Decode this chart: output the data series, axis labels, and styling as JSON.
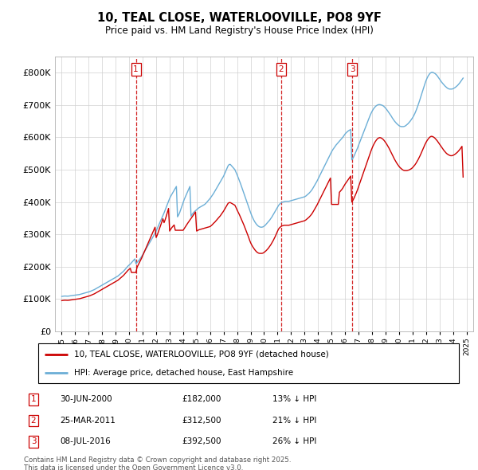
{
  "title": "10, TEAL CLOSE, WATERLOOVILLE, PO8 9YF",
  "subtitle": "Price paid vs. HM Land Registry's House Price Index (HPI)",
  "legend_line1": "10, TEAL CLOSE, WATERLOOVILLE, PO8 9YF (detached house)",
  "legend_line2": "HPI: Average price, detached house, East Hampshire",
  "footer_line1": "Contains HM Land Registry data © Crown copyright and database right 2025.",
  "footer_line2": "This data is licensed under the Open Government Licence v3.0.",
  "transactions": [
    {
      "num": 1,
      "date": "30-JUN-2000",
      "price": "£182,000",
      "pct": "13% ↓ HPI"
    },
    {
      "num": 2,
      "date": "25-MAR-2011",
      "price": "£312,500",
      "pct": "21% ↓ HPI"
    },
    {
      "num": 3,
      "date": "08-JUL-2016",
      "price": "£392,500",
      "pct": "26% ↓ HPI"
    }
  ],
  "vline_years": [
    2000.5,
    2011.25,
    2016.54
  ],
  "ylim": [
    0,
    850000
  ],
  "yticks": [
    0,
    100000,
    200000,
    300000,
    400000,
    500000,
    600000,
    700000,
    800000
  ],
  "xlim_start": 1994.5,
  "xlim_end": 2025.5,
  "hpi_color": "#6baed6",
  "price_color": "#cc0000",
  "vline_color": "#cc0000",
  "background_color": "#ffffff",
  "grid_color": "#d0d0d0",
  "hpi_data_years_start": 1995.0,
  "hpi_data_years_step": 0.0833,
  "hpi_values": [
    108000,
    108500,
    109000,
    109200,
    109000,
    108800,
    109000,
    109500,
    110000,
    110500,
    111000,
    111500,
    112000,
    112500,
    113000,
    113500,
    114000,
    115000,
    116000,
    117000,
    118000,
    119000,
    120000,
    121000,
    122000,
    123000,
    124500,
    126000,
    127500,
    129000,
    131000,
    133000,
    135000,
    137000,
    139000,
    141000,
    143000,
    145000,
    147000,
    149000,
    151000,
    153000,
    155000,
    157000,
    159000,
    161000,
    163000,
    165000,
    167000,
    169000,
    171000,
    174000,
    177000,
    180000,
    183000,
    186000,
    190000,
    194000,
    198000,
    202000,
    205000,
    208000,
    212000,
    216000,
    220000,
    224000,
    209000,
    213000,
    217000,
    221000,
    226000,
    231000,
    237000,
    243000,
    249000,
    255000,
    261000,
    267000,
    273000,
    279000,
    285000,
    291000,
    297000,
    303000,
    310000,
    318000,
    326000,
    334000,
    342000,
    350000,
    358000,
    366000,
    375000,
    384000,
    393000,
    402000,
    411000,
    418000,
    424000,
    430000,
    436000,
    442000,
    448000,
    354000,
    360000,
    368000,
    378000,
    388000,
    398000,
    408000,
    416000,
    424000,
    432000,
    440000,
    448000,
    356000,
    362000,
    366000,
    370000,
    373000,
    376000,
    379000,
    382000,
    384000,
    386000,
    388000,
    390000,
    392000,
    395000,
    399000,
    403000,
    407000,
    411000,
    416000,
    421000,
    426000,
    432000,
    438000,
    444000,
    450000,
    456000,
    462000,
    468000,
    474000,
    480000,
    488000,
    496000,
    504000,
    512000,
    516000,
    516000,
    512000,
    508000,
    504000,
    500000,
    492000,
    484000,
    475000,
    466000,
    457000,
    447000,
    437000,
    427000,
    417000,
    407000,
    397000,
    387000,
    377000,
    367000,
    358000,
    350000,
    343000,
    337000,
    332000,
    328000,
    325000,
    323000,
    322000,
    322000,
    323000,
    325000,
    328000,
    332000,
    336000,
    340000,
    344000,
    349000,
    354000,
    360000,
    366000,
    372000,
    378000,
    384000,
    390000,
    394000,
    397000,
    399000,
    400000,
    401000,
    402000,
    402000,
    402000,
    402000,
    403000,
    404000,
    405000,
    406000,
    407000,
    408000,
    409000,
    410000,
    411000,
    412000,
    413000,
    414000,
    415000,
    416000,
    418000,
    421000,
    424000,
    427000,
    431000,
    435000,
    440000,
    446000,
    452000,
    458000,
    464000,
    471000,
    478000,
    485000,
    492000,
    499000,
    506000,
    513000,
    520000,
    527000,
    534000,
    541000,
    548000,
    555000,
    561000,
    566000,
    571000,
    576000,
    580000,
    584000,
    588000,
    592000,
    596000,
    600000,
    605000,
    610000,
    614000,
    617000,
    620000,
    622000,
    624000,
    530000,
    535000,
    542000,
    550000,
    558000,
    566000,
    575000,
    584000,
    593000,
    602000,
    611000,
    620000,
    629000,
    638000,
    647000,
    656000,
    665000,
    673000,
    680000,
    686000,
    691000,
    695000,
    698000,
    700000,
    701000,
    701000,
    700000,
    699000,
    697000,
    694000,
    690000,
    686000,
    681000,
    676000,
    671000,
    666000,
    660000,
    655000,
    650000,
    646000,
    642000,
    639000,
    636000,
    634000,
    633000,
    633000,
    633000,
    634000,
    636000,
    639000,
    642000,
    646000,
    650000,
    655000,
    660000,
    666000,
    673000,
    681000,
    690000,
    700000,
    710000,
    721000,
    732000,
    743000,
    754000,
    765000,
    775000,
    783000,
    790000,
    795000,
    799000,
    801000,
    801000,
    799000,
    797000,
    794000,
    790000,
    785000,
    780000,
    775000,
    770000,
    766000,
    762000,
    758000,
    755000,
    752000,
    750000,
    749000,
    749000,
    749000,
    750000,
    752000,
    754000,
    757000,
    760000,
    764000,
    768000,
    773000,
    778000,
    783000
  ],
  "price_values": [
    95000,
    95500,
    96000,
    96200,
    96000,
    95800,
    96000,
    96500,
    97000,
    97500,
    98000,
    98500,
    99000,
    99500,
    100000,
    100500,
    101000,
    102000,
    103000,
    104000,
    105000,
    106000,
    107000,
    108000,
    109000,
    110000,
    111500,
    113000,
    114500,
    116000,
    118000,
    120000,
    122000,
    124000,
    126000,
    128000,
    130000,
    132000,
    134000,
    136000,
    138000,
    140000,
    142000,
    144000,
    146000,
    148000,
    150000,
    152000,
    154000,
    156000,
    158000,
    161000,
    164000,
    167000,
    170000,
    173000,
    177000,
    181000,
    185000,
    189000,
    192000,
    195000,
    182000,
    182000,
    182000,
    182000,
    182000,
    198000,
    205000,
    212000,
    219000,
    226000,
    234000,
    242000,
    250000,
    258000,
    266000,
    274000,
    282000,
    290000,
    298000,
    306000,
    314000,
    322000,
    290000,
    298000,
    308000,
    318000,
    328000,
    338000,
    348000,
    336000,
    345000,
    356000,
    368000,
    380000,
    310000,
    316000,
    321000,
    325000,
    329000,
    312500,
    312500,
    312500,
    312500,
    312500,
    312500,
    312500,
    312500,
    318000,
    324000,
    329000,
    334000,
    339000,
    344000,
    349000,
    354000,
    359000,
    364000,
    369000,
    310000,
    312000,
    314000,
    315000,
    316000,
    317000,
    318000,
    319000,
    320000,
    321000,
    322000,
    323000,
    324000,
    327000,
    330000,
    334000,
    337000,
    341000,
    345000,
    349000,
    353000,
    357000,
    362000,
    367000,
    372000,
    378000,
    384000,
    390000,
    396000,
    398000,
    398000,
    396000,
    394000,
    392000,
    390000,
    383000,
    375000,
    368000,
    361000,
    353000,
    345000,
    337000,
    329000,
    320000,
    311000,
    302000,
    293000,
    283000,
    274000,
    267000,
    261000,
    256000,
    251000,
    247000,
    244000,
    242000,
    241000,
    241000,
    241000,
    242000,
    244000,
    247000,
    250000,
    254000,
    258000,
    263000,
    268000,
    274000,
    280000,
    287000,
    294000,
    302000,
    310000,
    317000,
    321000,
    324000,
    326000,
    327000,
    328000,
    328000,
    328000,
    328000,
    328000,
    329000,
    330000,
    331000,
    332000,
    333000,
    334000,
    335000,
    336000,
    337000,
    338000,
    339000,
    340000,
    341000,
    342000,
    344000,
    347000,
    350000,
    353000,
    357000,
    361000,
    366000,
    372000,
    378000,
    384000,
    390000,
    397000,
    404000,
    411000,
    418000,
    425000,
    432000,
    439000,
    446000,
    453000,
    460000,
    467000,
    474000,
    392500,
    392500,
    392500,
    392500,
    392500,
    392500,
    392500,
    430000,
    434000,
    438000,
    443000,
    449000,
    455000,
    460000,
    465000,
    470000,
    475000,
    480000,
    400000,
    405000,
    412000,
    420000,
    428000,
    437000,
    447000,
    457000,
    467000,
    477000,
    487000,
    497000,
    507000,
    517000,
    527000,
    537000,
    547000,
    557000,
    566000,
    574000,
    581000,
    587000,
    592000,
    596000,
    598000,
    599000,
    598000,
    596000,
    593000,
    589000,
    584000,
    579000,
    573000,
    567000,
    560000,
    553000,
    546000,
    539000,
    532000,
    526000,
    520000,
    515000,
    510000,
    506000,
    503000,
    500000,
    498000,
    497000,
    497000,
    497000,
    498000,
    499000,
    501000,
    503000,
    506000,
    510000,
    514000,
    519000,
    525000,
    531000,
    538000,
    545000,
    553000,
    561000,
    569000,
    577000,
    584000,
    590000,
    595000,
    599000,
    602000,
    603000,
    602000,
    600000,
    597000,
    593000,
    589000,
    584000,
    579000,
    574000,
    569000,
    564000,
    559000,
    555000,
    551000,
    548000,
    546000,
    544000,
    543000,
    543000,
    544000,
    546000,
    548000,
    551000,
    554000,
    558000,
    562000,
    567000,
    572000,
    477000
  ]
}
